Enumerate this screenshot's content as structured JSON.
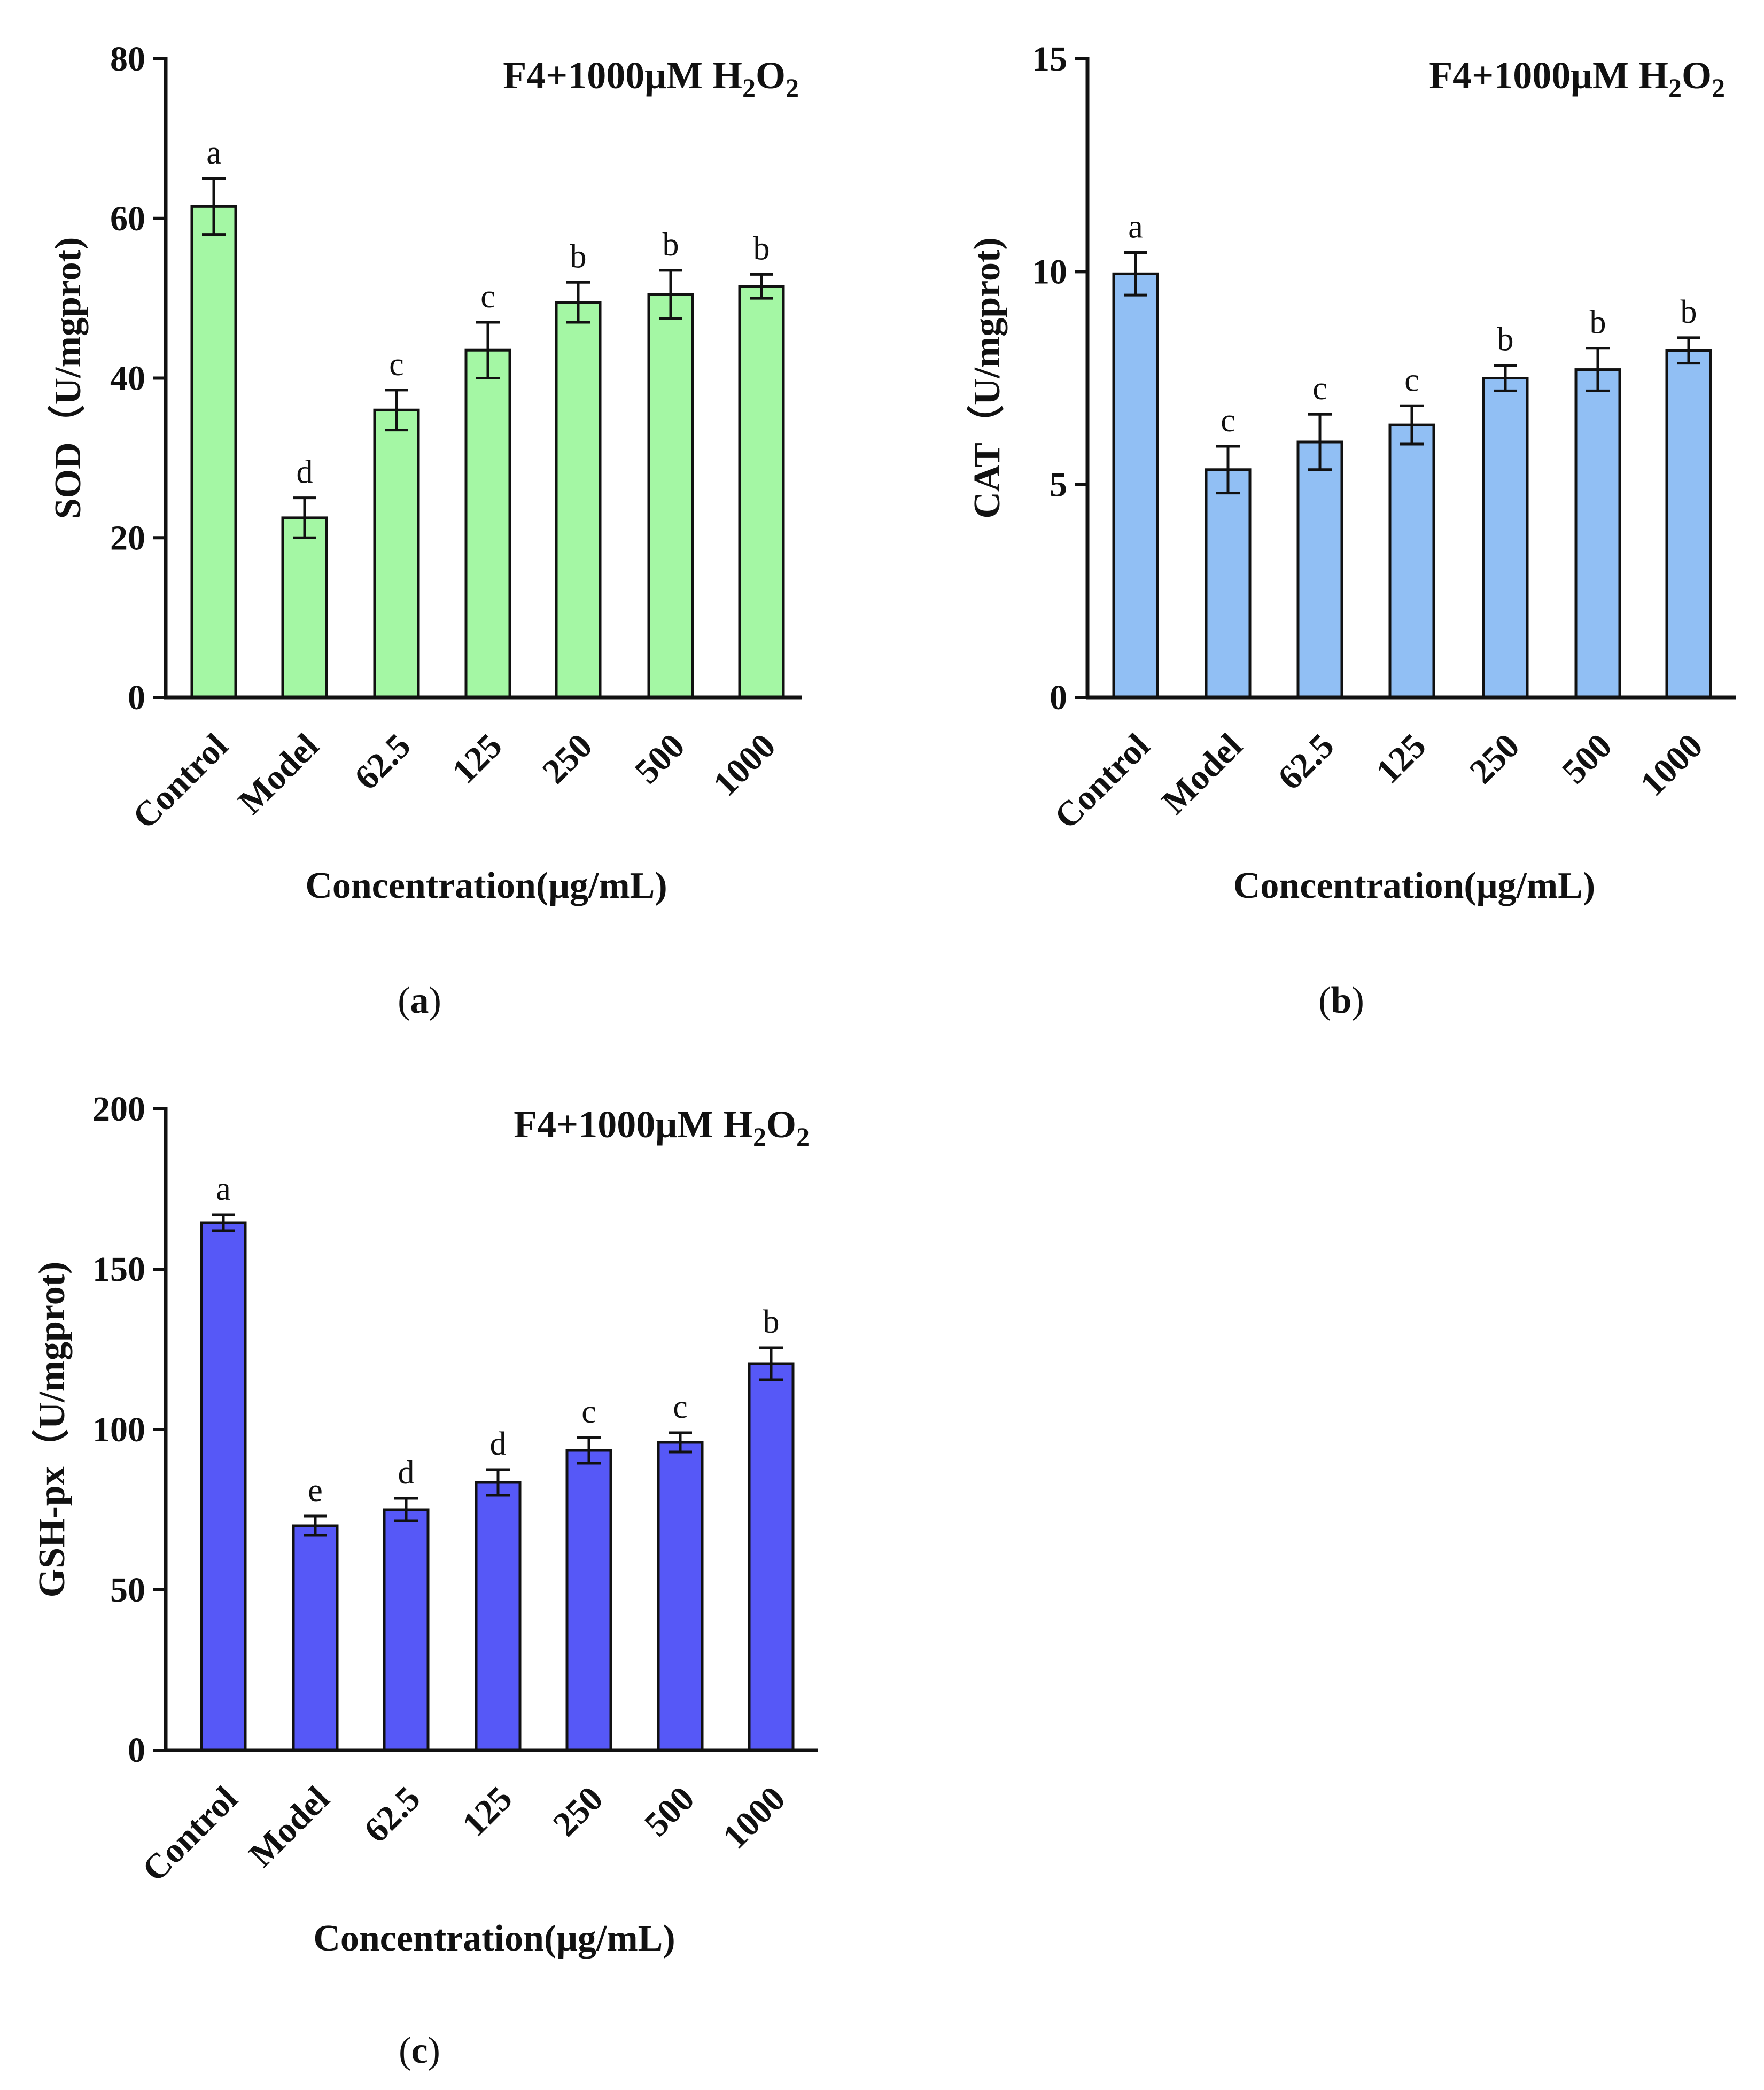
{
  "chart_data": [
    {
      "type": "bar",
      "panel": "a",
      "title": "F4+1000μM H",
      "title_sub1": "2",
      "title_mid": "O",
      "title_sub2": "2",
      "xlabel": "Concentration(μg/mL)",
      "ylabel": "SOD（U/mgprot)",
      "categories": [
        "Control",
        "Model",
        "62.5",
        "125",
        "250",
        "500",
        "1000"
      ],
      "values": [
        61.5,
        22.5,
        36.0,
        43.5,
        49.5,
        50.5,
        51.5
      ],
      "errors": [
        3.5,
        2.5,
        2.5,
        3.5,
        2.5,
        3.0,
        1.5
      ],
      "significance": [
        "a",
        "d",
        "c",
        "c",
        "b",
        "b",
        "b"
      ],
      "ylim": [
        0,
        80
      ],
      "yticks": [
        0,
        20,
        40,
        60,
        80
      ],
      "ytick_labels": [
        "0",
        "20",
        "40",
        "60",
        "80"
      ],
      "bar_color": "#a4f7a4"
    },
    {
      "type": "bar",
      "panel": "b",
      "title": "F4+1000μM H",
      "title_sub1": "2",
      "title_mid": "O",
      "title_sub2": "2",
      "xlabel": "Concentration(μg/mL)",
      "ylabel": "CAT（U/mgprot)",
      "categories": [
        "Control",
        "Model",
        "62.5",
        "125",
        "250",
        "500",
        "1000"
      ],
      "values": [
        9.95,
        5.35,
        6.0,
        6.4,
        7.5,
        7.7,
        8.15
      ],
      "errors": [
        0.5,
        0.55,
        0.65,
        0.45,
        0.3,
        0.5,
        0.3
      ],
      "significance": [
        "a",
        "c",
        "c",
        "c",
        "b",
        "b",
        "b"
      ],
      "ylim": [
        0,
        15
      ],
      "yticks": [
        0,
        5,
        10,
        15
      ],
      "ytick_labels": [
        "0",
        "5",
        "10",
        "15"
      ],
      "bar_color": "#91bff4"
    },
    {
      "type": "bar",
      "panel": "c",
      "title": "F4+1000μM H",
      "title_sub1": "2",
      "title_mid": "O",
      "title_sub2": "2",
      "xlabel": "Concentration(μg/mL)",
      "ylabel": "GSH-px（U/mgprot)",
      "categories": [
        "Control",
        "Model",
        "62.5",
        "125",
        "250",
        "500",
        "1000"
      ],
      "values": [
        164.5,
        70.0,
        75.0,
        83.5,
        93.5,
        96.0,
        120.5
      ],
      "errors": [
        2.5,
        3.0,
        3.5,
        4.0,
        4.0,
        3.0,
        5.0
      ],
      "significance": [
        "a",
        "e",
        "d",
        "d",
        "c",
        "c",
        "b"
      ],
      "ylim": [
        0,
        200
      ],
      "yticks": [
        0,
        50,
        100,
        150,
        200
      ],
      "ytick_labels": [
        "0",
        "50",
        "100",
        "150",
        "200"
      ],
      "bar_color": "#5658f7"
    }
  ],
  "panel_labels": [
    {
      "open": "(",
      "letter": "a",
      "close": ")"
    },
    {
      "open": "(",
      "letter": "b",
      "close": ")"
    },
    {
      "open": "(",
      "letter": "c",
      "close": ")"
    }
  ]
}
